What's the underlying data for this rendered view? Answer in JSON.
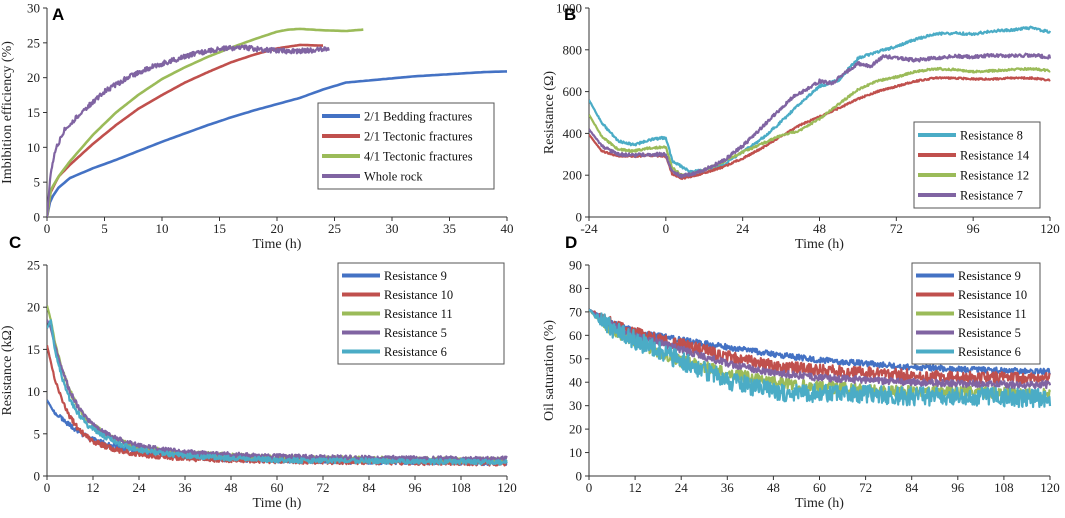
{
  "chart_data": [
    {
      "panel": "A",
      "type": "line",
      "xlabel": "Time (h)",
      "ylabel": "Imbibition efficiency (%)",
      "xlim": [
        0,
        40
      ],
      "ylim": [
        0,
        30
      ],
      "xticks": [
        0,
        5,
        10,
        15,
        20,
        25,
        30,
        35,
        40
      ],
      "yticks": [
        0,
        5,
        10,
        15,
        20,
        25,
        30
      ],
      "legend_position": "right-middle",
      "series": [
        {
          "name": "2/1 Bedding fractures",
          "color": "#4472C4",
          "noise": 0,
          "x": [
            0,
            0.3,
            1,
            2,
            4,
            6,
            8,
            10,
            12,
            14,
            16,
            18,
            20,
            22,
            24,
            26,
            28,
            30,
            32,
            34,
            36,
            38,
            40
          ],
          "y": [
            0,
            2.5,
            4.2,
            5.6,
            7.0,
            8.2,
            9.5,
            10.8,
            12.0,
            13.2,
            14.3,
            15.3,
            16.2,
            17.1,
            18.3,
            19.3,
            19.6,
            19.9,
            20.2,
            20.4,
            20.6,
            20.8,
            20.9
          ]
        },
        {
          "name": "2/1 Tectonic fractures",
          "color": "#C0504D",
          "noise": 0,
          "x": [
            0,
            0.3,
            1,
            2,
            4,
            6,
            8,
            10,
            12,
            14,
            16,
            18,
            20,
            22,
            24
          ],
          "y": [
            0,
            3.5,
            5.8,
            7.5,
            10.5,
            13.2,
            15.6,
            17.5,
            19.3,
            20.8,
            22.2,
            23.3,
            24.2,
            24.7,
            24.6
          ]
        },
        {
          "name": "4/1 Tectonic fractures",
          "color": "#9BBB59",
          "noise": 0,
          "x": [
            0,
            0.3,
            1,
            2,
            4,
            6,
            8,
            10,
            12,
            14,
            16,
            18,
            20,
            21,
            22,
            24,
            26,
            27.5
          ],
          "y": [
            0,
            3.8,
            5.8,
            8.0,
            11.8,
            15.0,
            17.6,
            19.8,
            21.5,
            23.0,
            24.3,
            25.5,
            26.6,
            26.9,
            27.0,
            26.8,
            26.7,
            26.9
          ]
        },
        {
          "name": "Whole rock",
          "color": "#8064A2",
          "noise": 0.35,
          "x": [
            0,
            0.3,
            0.7,
            1.5,
            3,
            5,
            7,
            9,
            11,
            13,
            15,
            17,
            19,
            21,
            23,
            24.5
          ],
          "y": [
            0,
            6.0,
            9.5,
            12.5,
            15.0,
            18.0,
            20.0,
            21.5,
            22.5,
            23.5,
            24.1,
            24.3,
            24.0,
            23.8,
            23.9,
            24.1
          ]
        }
      ]
    },
    {
      "panel": "B",
      "type": "line",
      "xlabel": "Time (h)",
      "ylabel": "Resistance (Ω)",
      "xlim": [
        -24,
        120
      ],
      "ylim": [
        0,
        1000
      ],
      "xticks": [
        -24,
        0,
        24,
        48,
        72,
        96,
        120
      ],
      "yticks": [
        0,
        200,
        400,
        600,
        800,
        1000
      ],
      "legend_position": "right-middle",
      "series": [
        {
          "name": "Resistance 8",
          "color": "#4BACC6",
          "noise": 6,
          "x": [
            -24,
            -20,
            -15,
            -10,
            -5,
            0,
            2,
            5,
            8,
            12,
            18,
            24,
            30,
            36,
            42,
            48,
            54,
            60,
            66,
            72,
            78,
            84,
            90,
            96,
            102,
            108,
            114,
            120
          ],
          "y": [
            560,
            450,
            365,
            345,
            370,
            380,
            270,
            240,
            215,
            225,
            250,
            310,
            375,
            455,
            545,
            625,
            655,
            760,
            790,
            815,
            850,
            875,
            880,
            875,
            890,
            895,
            905,
            885
          ]
        },
        {
          "name": "Resistance 14",
          "color": "#C0504D",
          "noise": 4,
          "x": [
            -24,
            -20,
            -15,
            -10,
            -5,
            0,
            2,
            5,
            8,
            12,
            18,
            24,
            30,
            36,
            42,
            48,
            54,
            60,
            66,
            72,
            78,
            84,
            90,
            96,
            102,
            108,
            114,
            120
          ],
          "y": [
            395,
            315,
            292,
            290,
            295,
            290,
            205,
            185,
            195,
            210,
            240,
            280,
            330,
            385,
            440,
            480,
            520,
            565,
            600,
            625,
            650,
            665,
            665,
            660,
            660,
            665,
            665,
            655
          ]
        },
        {
          "name": "Resistance 12",
          "color": "#9BBB59",
          "noise": 5,
          "x": [
            -24,
            -20,
            -15,
            -10,
            -5,
            0,
            2,
            5,
            8,
            12,
            18,
            24,
            30,
            36,
            42,
            48,
            54,
            60,
            66,
            72,
            78,
            84,
            90,
            96,
            102,
            108,
            114,
            120
          ],
          "y": [
            490,
            385,
            325,
            315,
            330,
            335,
            235,
            200,
            205,
            225,
            265,
            310,
            350,
            390,
            415,
            470,
            540,
            610,
            650,
            670,
            695,
            710,
            705,
            695,
            700,
            705,
            710,
            700
          ]
        },
        {
          "name": "Resistance 7",
          "color": "#8064A2",
          "noise": 8,
          "x": [
            -24,
            -20,
            -15,
            -10,
            -5,
            0,
            2,
            5,
            8,
            12,
            18,
            24,
            30,
            36,
            40,
            44,
            48,
            52,
            56,
            60,
            64,
            68,
            72,
            78,
            84,
            90,
            96,
            102,
            108,
            114,
            120
          ],
          "y": [
            420,
            340,
            300,
            295,
            300,
            300,
            215,
            195,
            205,
            225,
            270,
            340,
            430,
            520,
            580,
            610,
            650,
            640,
            690,
            735,
            720,
            770,
            760,
            750,
            760,
            770,
            765,
            775,
            770,
            775,
            765
          ]
        }
      ]
    },
    {
      "panel": "C",
      "type": "line",
      "xlabel": "Time (h)",
      "ylabel": "Resistance (kΩ)",
      "xlim": [
        0,
        120
      ],
      "ylim": [
        0,
        25
      ],
      "xticks": [
        0,
        12,
        24,
        36,
        48,
        60,
        72,
        84,
        96,
        108,
        120
      ],
      "yticks": [
        0,
        5,
        10,
        15,
        20,
        25
      ],
      "legend_position": "top-right",
      "series": [
        {
          "name": "Resistance 9",
          "color": "#4472C4",
          "noise": 0.3,
          "x": [
            0,
            1,
            2,
            4,
            6,
            8,
            10,
            12,
            16,
            20,
            24,
            30,
            36,
            48,
            60,
            72,
            84,
            96,
            108,
            120
          ],
          "y": [
            9.0,
            8.2,
            7.5,
            6.8,
            6.0,
            5.3,
            4.8,
            4.3,
            3.7,
            3.2,
            2.9,
            2.6,
            2.3,
            2.0,
            1.9,
            1.8,
            1.7,
            1.7,
            1.6,
            1.6
          ]
        },
        {
          "name": "Resistance 10",
          "color": "#C0504D",
          "noise": 0.3,
          "x": [
            0,
            1,
            2,
            4,
            6,
            8,
            10,
            12,
            16,
            20,
            24,
            30,
            36,
            48,
            60,
            72,
            84,
            96,
            108,
            120
          ],
          "y": [
            15.5,
            13.5,
            11.5,
            9.0,
            7.0,
            5.7,
            4.8,
            4.1,
            3.4,
            2.9,
            2.6,
            2.3,
            2.1,
            1.9,
            1.8,
            1.7,
            1.7,
            1.6,
            1.6,
            1.5
          ]
        },
        {
          "name": "Resistance 11",
          "color": "#9BBB59",
          "noise": 0.3,
          "x": [
            0,
            1,
            2,
            4,
            6,
            8,
            10,
            12,
            16,
            20,
            24,
            30,
            36,
            48,
            60,
            72,
            84,
            96,
            108,
            120
          ],
          "y": [
            20.2,
            18.5,
            16.0,
            12.5,
            10.0,
            8.3,
            7.0,
            6.0,
            4.8,
            4.0,
            3.4,
            3.0,
            2.7,
            2.4,
            2.2,
            2.1,
            2.0,
            2.0,
            1.9,
            1.9
          ]
        },
        {
          "name": "Resistance 5",
          "color": "#8064A2",
          "noise": 0.3,
          "x": [
            0,
            1,
            2,
            4,
            6,
            8,
            10,
            12,
            16,
            20,
            24,
            30,
            36,
            48,
            60,
            72,
            84,
            96,
            108,
            120
          ],
          "y": [
            18.5,
            17.5,
            15.5,
            12.5,
            10.0,
            8.3,
            7.0,
            6.0,
            4.9,
            4.1,
            3.6,
            3.1,
            2.8,
            2.5,
            2.3,
            2.2,
            2.1,
            2.1,
            2.0,
            2.0
          ]
        },
        {
          "name": "Resistance 6",
          "color": "#4BACC6",
          "noise": 0.3,
          "x": [
            0,
            1,
            2,
            4,
            6,
            8,
            10,
            12,
            16,
            20,
            24,
            30,
            36,
            48,
            60,
            72,
            84,
            96,
            108,
            120
          ],
          "y": [
            17.5,
            18.5,
            15.0,
            11.5,
            9.0,
            7.5,
            6.3,
            5.5,
            4.4,
            3.6,
            3.1,
            2.7,
            2.4,
            2.1,
            1.9,
            1.8,
            1.8,
            1.7,
            1.7,
            1.6
          ]
        }
      ]
    },
    {
      "panel": "D",
      "type": "line",
      "xlabel": "Time (h)",
      "ylabel": "Oil saturation (%)",
      "xlim": [
        0,
        120
      ],
      "ylim": [
        0,
        90
      ],
      "xticks": [
        0,
        12,
        24,
        36,
        48,
        60,
        72,
        84,
        96,
        108,
        120
      ],
      "yticks": [
        0,
        10,
        20,
        30,
        40,
        50,
        60,
        70,
        80,
        90
      ],
      "legend_position": "top-right",
      "series": [
        {
          "name": "Resistance 9",
          "color": "#4472C4",
          "noise": 1.2,
          "x": [
            0,
            6,
            12,
            24,
            36,
            48,
            60,
            72,
            84,
            96,
            108,
            120
          ],
          "y": [
            71,
            65,
            62,
            58,
            55,
            52,
            49.5,
            48,
            46.5,
            45.5,
            45,
            44.5
          ]
        },
        {
          "name": "Resistance 10",
          "color": "#C0504D",
          "noise": 2.5,
          "x": [
            0,
            6,
            12,
            24,
            36,
            48,
            60,
            72,
            84,
            96,
            108,
            120
          ],
          "y": [
            71,
            65,
            61,
            56,
            51,
            47,
            45,
            44,
            43,
            42,
            42,
            41.5
          ]
        },
        {
          "name": "Resistance 11",
          "color": "#9BBB59",
          "noise": 2.5,
          "x": [
            0,
            6,
            12,
            24,
            36,
            48,
            60,
            72,
            84,
            96,
            108,
            120
          ],
          "y": [
            71,
            62,
            57,
            49,
            44,
            40,
            38,
            37,
            36,
            36,
            35.5,
            35
          ]
        },
        {
          "name": "Resistance 5",
          "color": "#8064A2",
          "noise": 1.5,
          "x": [
            0,
            6,
            12,
            24,
            36,
            48,
            60,
            72,
            84,
            96,
            108,
            120
          ],
          "y": [
            71,
            64,
            60,
            54,
            48,
            44,
            42,
            41,
            40,
            39.5,
            39,
            39
          ]
        },
        {
          "name": "Resistance 6",
          "color": "#4BACC6",
          "noise": 4,
          "x": [
            0,
            6,
            12,
            24,
            36,
            48,
            60,
            72,
            84,
            96,
            108,
            120
          ],
          "y": [
            71,
            63,
            58,
            49,
            41,
            36,
            35,
            35,
            34,
            34,
            33.5,
            33
          ]
        }
      ]
    }
  ]
}
